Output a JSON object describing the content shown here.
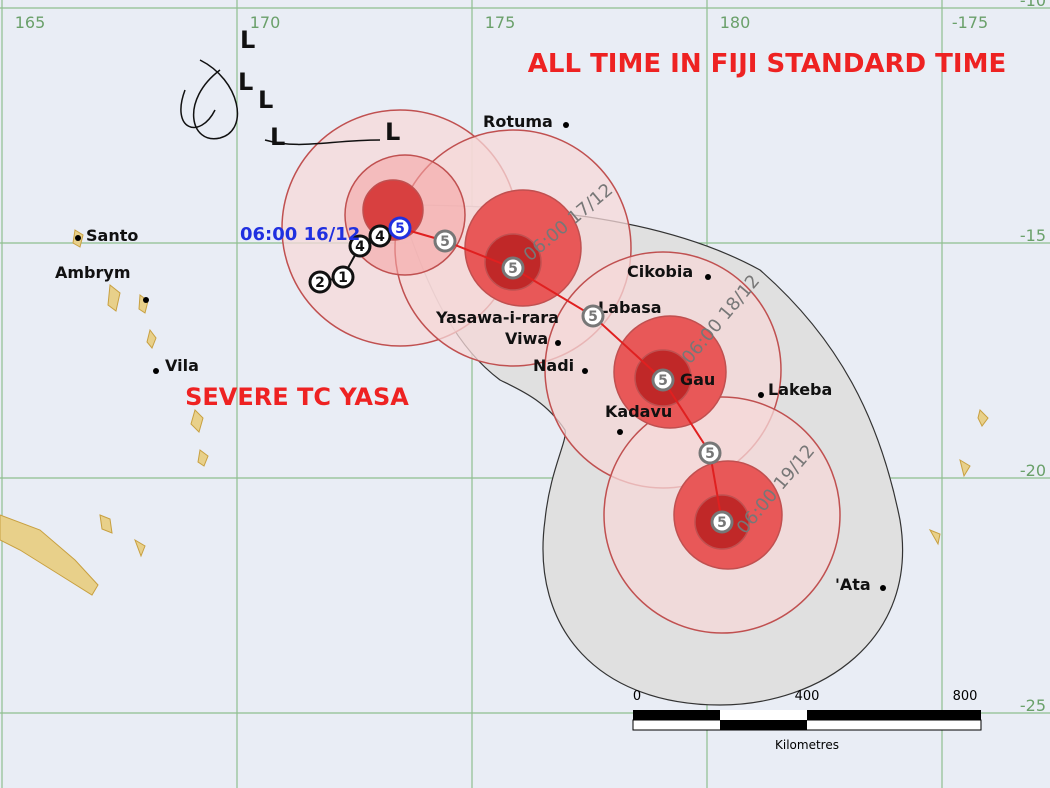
{
  "title": "ALL TIME IN FIJI STANDARD TIME",
  "storm_name": "SEVERE TC YASA",
  "longitude_labels": [
    "165",
    "170",
    "175",
    "180",
    "-175"
  ],
  "latitude_labels": [
    "-10",
    "-15",
    "-20",
    "-25"
  ],
  "places": [
    "Rotuma",
    "Santo",
    "Ambrym",
    "Vila",
    "Cikobia",
    "Labasa",
    "Yasawa-i-rara",
    "Viwa",
    "Nadi",
    "Gau",
    "Lakeba",
    "Kadavu",
    "'Ata"
  ],
  "forecast_times": [
    "06:00 16/12",
    "06:00 17/12",
    "06:00 18/12",
    "06:00 19/12"
  ],
  "track_markers": [
    "2",
    "1",
    "4",
    "4",
    "5",
    "5",
    "5",
    "5",
    "5",
    "5",
    "5"
  ],
  "lows": [
    "L",
    "L",
    "L",
    "L",
    "L"
  ],
  "scale": {
    "labels": [
      "0",
      "400",
      "800"
    ],
    "unit": "Kilometres"
  }
}
